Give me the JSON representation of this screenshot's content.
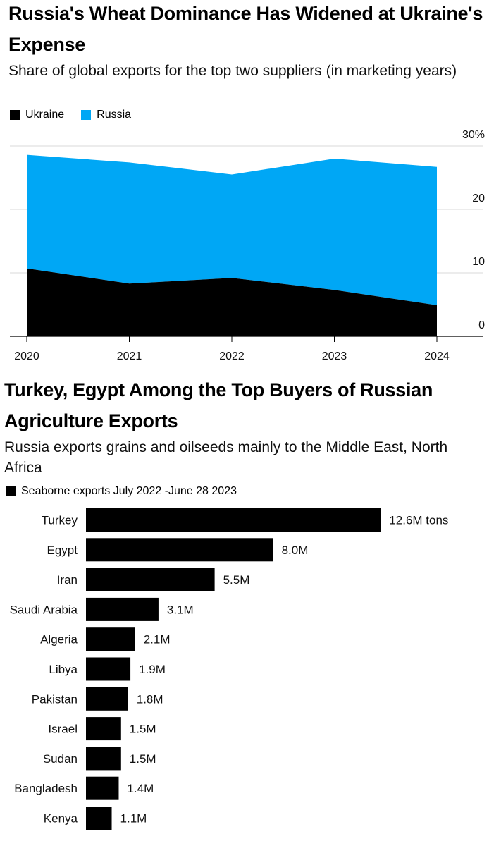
{
  "chart_data": [
    {
      "type": "area",
      "title": "Russia's Wheat Dominance Has Widened at Ukraine's Expense",
      "subtitle": "Share of global exports for the top two suppliers (in marketing years)",
      "x": [
        "2020",
        "2021",
        "2022",
        "2023",
        "2024"
      ],
      "series": [
        {
          "name": "Ukraine",
          "color": "#000000",
          "values": [
            10.7,
            8.3,
            9.2,
            7.3,
            4.9
          ]
        },
        {
          "name": "Russia",
          "color": "#00a7f5",
          "values": [
            17.9,
            19.1,
            16.3,
            20.7,
            21.8
          ]
        }
      ],
      "stacked": true,
      "ylim": [
        0,
        30
      ],
      "yticks": [
        "30%",
        "20",
        "10",
        "0"
      ],
      "ytick_values": [
        30,
        20,
        10,
        0
      ],
      "grid": true,
      "legend_position": "top-left"
    },
    {
      "type": "bar",
      "orientation": "horizontal",
      "title": "Turkey, Egypt Among the Top Buyers of Russian Agriculture Exports",
      "subtitle": "Russia exports grains and oilseeds mainly to the Middle East, North Africa",
      "series_name": "Seaborne exports July 2022 -June 28 2023",
      "categories": [
        "Turkey",
        "Egypt",
        "Iran",
        "Saudi Arabia",
        "Algeria",
        "Libya",
        "Pakistan",
        "Israel",
        "Sudan",
        "Bangladesh",
        "Kenya"
      ],
      "values": [
        12.6,
        8.0,
        5.5,
        3.1,
        2.1,
        1.9,
        1.8,
        1.5,
        1.5,
        1.4,
        1.1
      ],
      "value_labels": [
        "12.6M tons",
        "8.0M",
        "5.5M",
        "3.1M",
        "2.1M",
        "1.9M",
        "1.8M",
        "1.5M",
        "1.5M",
        "1.4M",
        "1.1M"
      ],
      "color": "#000000"
    }
  ]
}
